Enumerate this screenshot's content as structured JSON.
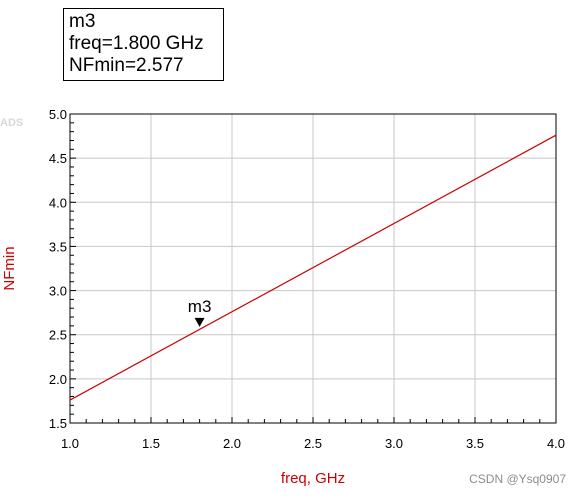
{
  "marker_box": {
    "name": "m3",
    "freq_text": "freq=1.800 GHz",
    "value_text": "NFmin=2.577"
  },
  "logo_text": "ADS",
  "watermark": "CSDN @Ysq0907",
  "colors": {
    "trace": "#cc0000",
    "axis_label": "#cc0000",
    "grid": "#c8c8c8"
  },
  "chart_data": {
    "type": "line",
    "xlabel": "freq, GHz",
    "ylabel": "NFmin",
    "xlim": [
      1.0,
      4.0
    ],
    "ylim": [
      1.5,
      5.0
    ],
    "x_ticks": [
      "1.0",
      "1.5",
      "2.0",
      "2.5",
      "3.0",
      "3.5",
      "4.0"
    ],
    "y_ticks": [
      "1.5",
      "2.0",
      "2.5",
      "3.0",
      "3.5",
      "4.0",
      "4.5",
      "5.0"
    ],
    "grid": true,
    "series": [
      {
        "x": [
          1.0,
          4.0
        ],
        "y": [
          1.76,
          4.76
        ]
      }
    ],
    "markers": [
      {
        "label": "m3",
        "x": 1.8,
        "y": 2.577
      }
    ]
  }
}
